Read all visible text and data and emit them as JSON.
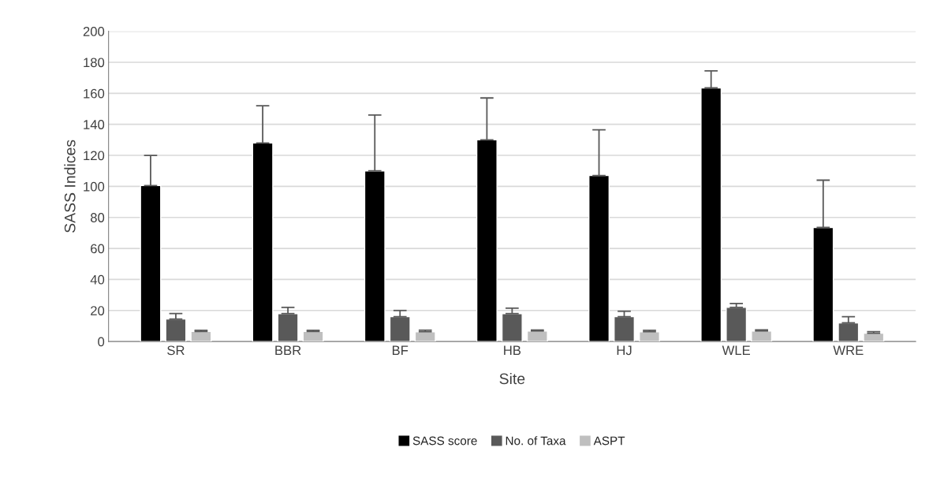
{
  "chart_data": {
    "type": "bar",
    "xlabel": "Site",
    "ylabel": "SASS Indices",
    "categories": [
      "SR",
      "BBR",
      "BF",
      "HB",
      "HJ",
      "WLE",
      "WRE"
    ],
    "series": [
      {
        "name": "SASS score",
        "color": "#000000",
        "values": [
          100.5,
          128,
          110,
          130,
          107,
          163.5,
          73.5
        ],
        "errors": [
          [
            100.5,
            120
          ],
          [
            128,
            152
          ],
          [
            110,
            146
          ],
          [
            130,
            157
          ],
          [
            107,
            136.5
          ],
          [
            163.5,
            174.5
          ],
          [
            73.5,
            104
          ]
        ]
      },
      {
        "name": "No. of Taxa",
        "color": "#595959",
        "values": [
          14.5,
          18,
          16,
          18,
          16,
          22,
          12
        ],
        "errors": [
          [
            14.5,
            18
          ],
          [
            18,
            22
          ],
          [
            16,
            20
          ],
          [
            18,
            21.5
          ],
          [
            16,
            19.5
          ],
          [
            22,
            24.5
          ],
          [
            12,
            16
          ]
        ]
      },
      {
        "name": "ASPT",
        "color": "#bfbfbf",
        "values": [
          6.5,
          6.5,
          6.3,
          6.8,
          6.3,
          6.8,
          5.3
        ],
        "errors": [
          [
            6.5,
            7.2
          ],
          [
            6.5,
            7.2
          ],
          [
            6.3,
            7.3
          ],
          [
            6.8,
            7.4
          ],
          [
            6.3,
            7.2
          ],
          [
            6.8,
            7.5
          ],
          [
            5.3,
            6.3
          ]
        ]
      }
    ],
    "ylim": [
      0,
      200
    ],
    "yticks": [
      0,
      20,
      40,
      60,
      80,
      100,
      120,
      140,
      160,
      180,
      200
    ],
    "grid": "y",
    "legend": "bottom"
  }
}
